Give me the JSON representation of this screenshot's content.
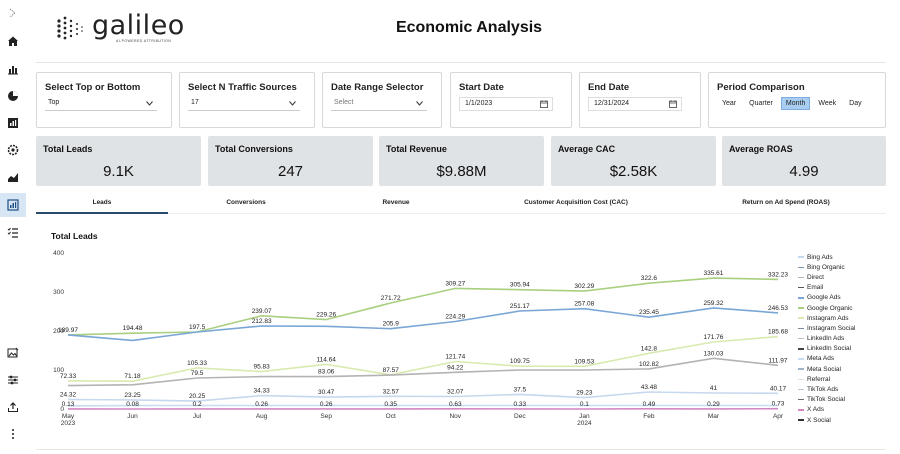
{
  "app": {
    "logo_text": "galileo",
    "logo_sub": "AI-POWERED ATTRIBUTION"
  },
  "page_title": "Economic Analysis",
  "rail_icons": [
    "collapse-icon",
    "home-icon",
    "bar-chart-icon",
    "pie-chart-icon",
    "report-icon",
    "settings-icon",
    "area-chart-icon",
    "dashboard-icon",
    "checklist-icon",
    "image-edit-icon",
    "sliders-icon",
    "upload-icon",
    "more-icon"
  ],
  "filters": {
    "top_bottom": {
      "label": "Select Top or Bottom",
      "value": "Top"
    },
    "traffic_sources": {
      "label": "Select N Traffic Sources",
      "value": "17"
    },
    "date_range": {
      "label": "Date Range Selector",
      "placeholder": "Select"
    },
    "start_date": {
      "label": "Start Date",
      "value": "1/1/2023"
    },
    "end_date": {
      "label": "End Date",
      "value": "12/31/2024"
    },
    "period": {
      "label": "Period Comparison",
      "options": [
        "Year",
        "Quarter",
        "Month",
        "Week",
        "Day"
      ],
      "selected": "Month"
    }
  },
  "kpis": [
    {
      "label": "Total Leads",
      "value": "9.1K"
    },
    {
      "label": "Total Conversions",
      "value": "247"
    },
    {
      "label": "Total Revenue",
      "value": "$9.88M"
    },
    {
      "label": "Average CAC",
      "value": "$2.58K"
    },
    {
      "label": "Average ROAS",
      "value": "4.99"
    }
  ],
  "tabs": [
    "Leads",
    "Conversions",
    "Revenue",
    "Customer Acquisition Cost (CAC)",
    "Return on Ad Spend (ROAS)"
  ],
  "active_tab": "Leads",
  "chart_title": "Total Leads",
  "colors": {
    "selected_button": "#a9cdf0",
    "kpi_bg": "#dfe3e6",
    "active_tab_underline": "#2b4a6b"
  },
  "chart_data": {
    "type": "line",
    "title": "Total Leads",
    "xlabel": "",
    "ylabel": "",
    "ylim": [
      0,
      400
    ],
    "yticks": [
      0,
      100,
      200,
      300,
      400
    ],
    "categories": [
      "May 2023",
      "Jun",
      "Jul",
      "Aug",
      "Sep",
      "Oct",
      "Nov",
      "Dec",
      "Jan 2024",
      "Feb",
      "Mar",
      "Apr"
    ],
    "x_tick_labels": [
      [
        "May",
        "2023"
      ],
      [
        "Jun"
      ],
      [
        "Jul"
      ],
      [
        "Aug"
      ],
      [
        "Sep"
      ],
      [
        "Oct"
      ],
      [
        "Nov"
      ],
      [
        "Dec"
      ],
      [
        "Jan",
        "2024"
      ],
      [
        "Feb"
      ],
      [
        "Mar"
      ],
      [
        "Apr"
      ]
    ],
    "grid": false,
    "legend_position": "right",
    "series": [
      {
        "name": "Google Organic",
        "color": "#a8d07f",
        "values": [
          189.97,
          194.48,
          197.5,
          239.07,
          229.26,
          271.72,
          309.27,
          305.94,
          302.29,
          322.6,
          335.61,
          332.23
        ]
      },
      {
        "name": "Google Ads",
        "color": "#7aa6d6",
        "values": [
          189.97,
          176,
          197.5,
          212.83,
          212,
          205.9,
          224.29,
          251.17,
          257.08,
          235.45,
          259.32,
          246.53
        ]
      },
      {
        "name": "Instagram Ads",
        "color": "#d9eab0",
        "values": [
          72.33,
          71.18,
          105.33,
          95.83,
          114.64,
          87.57,
          121.74,
          109.75,
          109.53,
          142.8,
          171.76,
          185.68
        ]
      },
      {
        "name": "Direct",
        "color": "#b3b3b3",
        "values": [
          60,
          62,
          79.5,
          83,
          83.06,
          87,
          94.22,
          100,
          100,
          102.82,
          130.03,
          111.97
        ]
      },
      {
        "name": "Bing Ads",
        "color": "#c6d8ee",
        "values": [
          24.32,
          23.25,
          20.25,
          34.33,
          30.47,
          32.57,
          32.07,
          37.5,
          29.23,
          43.48,
          41,
          40.17
        ]
      },
      {
        "name": "Meta Ads",
        "color": "#c8dcf2",
        "values": [
          8,
          9,
          9,
          9,
          9,
          9,
          9,
          9,
          9,
          9,
          9,
          9
        ]
      },
      {
        "name": "X Ads",
        "color": "#d486c3",
        "values": [
          0.13,
          0.08,
          0.2,
          0.26,
          0.26,
          0.35,
          0.63,
          0.33,
          0.1,
          0.49,
          0.29,
          0.73
        ]
      }
    ],
    "data_labels": [
      {
        "series": 0,
        "values": [
          "189.97",
          "194.48",
          "197.5",
          "239.07",
          "229.26",
          "271.72",
          "309.27",
          "305.94",
          "302.29",
          "322.6",
          "335.61",
          "332.23"
        ]
      },
      {
        "series": 1,
        "values": [
          "",
          "",
          "",
          "212.83",
          "",
          "205.9",
          "224.29",
          "251.17",
          "257.08",
          "235.45",
          "259.32",
          "246.53"
        ]
      },
      {
        "series": 2,
        "values": [
          "72.33",
          "71.18",
          "105.33",
          "95.83",
          "114.64",
          "87.57",
          "121.74",
          "109.75",
          "109.53",
          "142.8",
          "171.76",
          "185.68"
        ]
      },
      {
        "series": 3,
        "values": [
          "",
          "",
          "79.5",
          "",
          "83.06",
          "",
          "94.22",
          "",
          "",
          "102.82",
          "130.03",
          "111.97"
        ]
      },
      {
        "series": 4,
        "values": [
          "24.32",
          "23.25",
          "20.25",
          "34.33",
          "30.47",
          "32.57",
          "32.07",
          "37.5",
          "29.23",
          "43.48",
          "41",
          "40.17"
        ]
      },
      {
        "series": 6,
        "values": [
          "0.13",
          "0.08",
          "0.2",
          "0.26",
          "0.26",
          "0.35",
          "0.63",
          "0.33",
          "0.1",
          "0.49",
          "0.29",
          "0.73"
        ]
      }
    ],
    "legend": [
      {
        "name": "Bing Ads",
        "color": "#c6d8ee"
      },
      {
        "name": "Bing Organic",
        "color": "#7d8fa6"
      },
      {
        "name": "Direct",
        "color": "#b3b3b3"
      },
      {
        "name": "Email",
        "color": "#555555"
      },
      {
        "name": "Google Ads",
        "color": "#7aa6d6"
      },
      {
        "name": "Google Organic",
        "color": "#a8d07f"
      },
      {
        "name": "Instagram Ads",
        "color": "#d9eab0"
      },
      {
        "name": "Instagram Social",
        "color": "#7a8a9a"
      },
      {
        "name": "LinkedIn Ads",
        "color": "#c0c0c0"
      },
      {
        "name": "LinkedIn Social",
        "color": "#444444"
      },
      {
        "name": "Meta Ads",
        "color": "#c8dcf2"
      },
      {
        "name": "Meta Social",
        "color": "#9fb3c8"
      },
      {
        "name": "Referral",
        "color": "#e0e0e0"
      },
      {
        "name": "TikTok Ads",
        "color": "#b8c7d8"
      },
      {
        "name": "TikTok Social",
        "color": "#6d6d6d"
      },
      {
        "name": "X Ads",
        "color": "#d486c3"
      },
      {
        "name": "X Social",
        "color": "#333333"
      }
    ]
  }
}
